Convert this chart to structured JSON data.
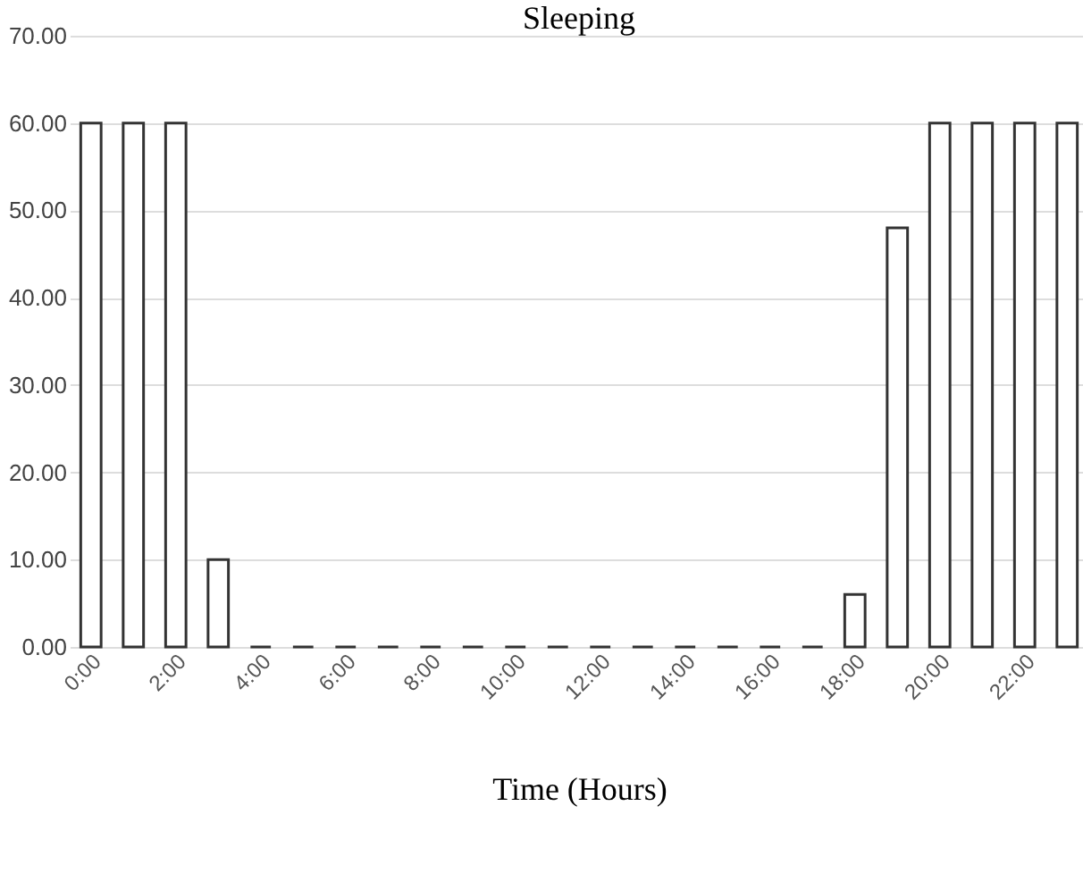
{
  "chart_data": {
    "type": "bar",
    "title": "Sleeping",
    "xlabel": "Time (Hours)",
    "categories": [
      "0:00",
      null,
      "2:00",
      null,
      "4:00",
      null,
      "6:00",
      null,
      "8:00",
      null,
      "10:00",
      null,
      "12:00",
      null,
      "14:00",
      null,
      "16:00",
      null,
      "18:00",
      null,
      "20:00",
      null,
      "22:00",
      null
    ],
    "values": [
      60,
      60,
      60,
      10,
      0,
      0,
      0,
      0,
      0,
      0,
      0,
      0,
      0,
      0,
      0,
      0,
      0,
      0,
      6,
      48,
      60,
      60,
      60,
      60
    ],
    "color": "#333333",
    "ylim": [
      0,
      70
    ],
    "yticks": [
      {
        "value": 0,
        "label": "0.00"
      },
      {
        "value": 10,
        "label": "10.00"
      },
      {
        "value": 20,
        "label": "20.00"
      },
      {
        "value": 30,
        "label": "30.00"
      },
      {
        "value": 40,
        "label": "40.00"
      },
      {
        "value": 50,
        "label": "50.00"
      },
      {
        "value": 60,
        "label": "60.00"
      },
      {
        "value": 70,
        "label": "70.00"
      }
    ],
    "grid": "y"
  }
}
